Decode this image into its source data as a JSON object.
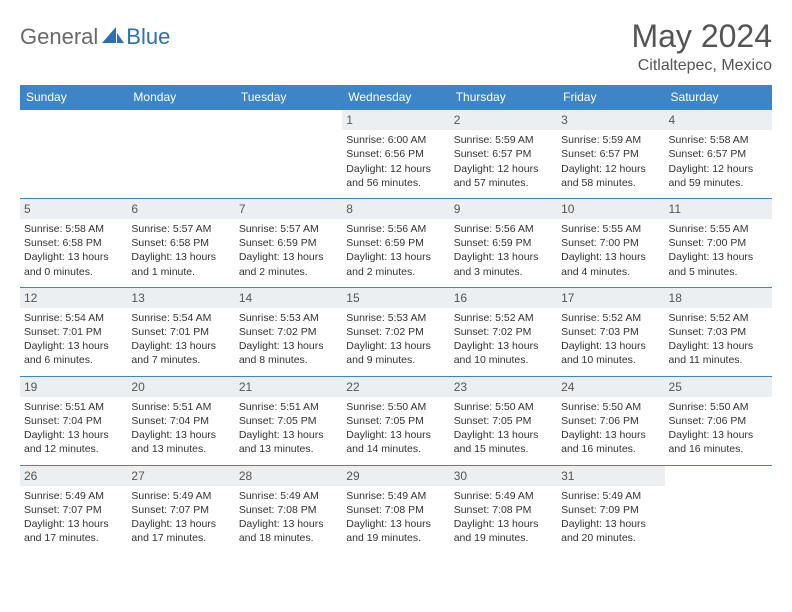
{
  "brand": {
    "part1": "General",
    "part2": "Blue"
  },
  "title": "May 2024",
  "location": "Citlaltepec, Mexico",
  "colors": {
    "header_bg": "#3d85c6",
    "header_text": "#ffffff",
    "daynum_bg": "#eceff1",
    "rule": "#3d85c6",
    "brand_gray": "#6a6a6a",
    "brand_blue": "#2d6fb5"
  },
  "weekdays": [
    "Sunday",
    "Monday",
    "Tuesday",
    "Wednesday",
    "Thursday",
    "Friday",
    "Saturday"
  ],
  "weeks": [
    [
      null,
      null,
      null,
      {
        "n": "1",
        "sr": "Sunrise: 6:00 AM",
        "ss": "Sunset: 6:56 PM",
        "d1": "Daylight: 12 hours",
        "d2": "and 56 minutes."
      },
      {
        "n": "2",
        "sr": "Sunrise: 5:59 AM",
        "ss": "Sunset: 6:57 PM",
        "d1": "Daylight: 12 hours",
        "d2": "and 57 minutes."
      },
      {
        "n": "3",
        "sr": "Sunrise: 5:59 AM",
        "ss": "Sunset: 6:57 PM",
        "d1": "Daylight: 12 hours",
        "d2": "and 58 minutes."
      },
      {
        "n": "4",
        "sr": "Sunrise: 5:58 AM",
        "ss": "Sunset: 6:57 PM",
        "d1": "Daylight: 12 hours",
        "d2": "and 59 minutes."
      }
    ],
    [
      {
        "n": "5",
        "sr": "Sunrise: 5:58 AM",
        "ss": "Sunset: 6:58 PM",
        "d1": "Daylight: 13 hours",
        "d2": "and 0 minutes."
      },
      {
        "n": "6",
        "sr": "Sunrise: 5:57 AM",
        "ss": "Sunset: 6:58 PM",
        "d1": "Daylight: 13 hours",
        "d2": "and 1 minute."
      },
      {
        "n": "7",
        "sr": "Sunrise: 5:57 AM",
        "ss": "Sunset: 6:59 PM",
        "d1": "Daylight: 13 hours",
        "d2": "and 2 minutes."
      },
      {
        "n": "8",
        "sr": "Sunrise: 5:56 AM",
        "ss": "Sunset: 6:59 PM",
        "d1": "Daylight: 13 hours",
        "d2": "and 2 minutes."
      },
      {
        "n": "9",
        "sr": "Sunrise: 5:56 AM",
        "ss": "Sunset: 6:59 PM",
        "d1": "Daylight: 13 hours",
        "d2": "and 3 minutes."
      },
      {
        "n": "10",
        "sr": "Sunrise: 5:55 AM",
        "ss": "Sunset: 7:00 PM",
        "d1": "Daylight: 13 hours",
        "d2": "and 4 minutes."
      },
      {
        "n": "11",
        "sr": "Sunrise: 5:55 AM",
        "ss": "Sunset: 7:00 PM",
        "d1": "Daylight: 13 hours",
        "d2": "and 5 minutes."
      }
    ],
    [
      {
        "n": "12",
        "sr": "Sunrise: 5:54 AM",
        "ss": "Sunset: 7:01 PM",
        "d1": "Daylight: 13 hours",
        "d2": "and 6 minutes."
      },
      {
        "n": "13",
        "sr": "Sunrise: 5:54 AM",
        "ss": "Sunset: 7:01 PM",
        "d1": "Daylight: 13 hours",
        "d2": "and 7 minutes."
      },
      {
        "n": "14",
        "sr": "Sunrise: 5:53 AM",
        "ss": "Sunset: 7:02 PM",
        "d1": "Daylight: 13 hours",
        "d2": "and 8 minutes."
      },
      {
        "n": "15",
        "sr": "Sunrise: 5:53 AM",
        "ss": "Sunset: 7:02 PM",
        "d1": "Daylight: 13 hours",
        "d2": "and 9 minutes."
      },
      {
        "n": "16",
        "sr": "Sunrise: 5:52 AM",
        "ss": "Sunset: 7:02 PM",
        "d1": "Daylight: 13 hours",
        "d2": "and 10 minutes."
      },
      {
        "n": "17",
        "sr": "Sunrise: 5:52 AM",
        "ss": "Sunset: 7:03 PM",
        "d1": "Daylight: 13 hours",
        "d2": "and 10 minutes."
      },
      {
        "n": "18",
        "sr": "Sunrise: 5:52 AM",
        "ss": "Sunset: 7:03 PM",
        "d1": "Daylight: 13 hours",
        "d2": "and 11 minutes."
      }
    ],
    [
      {
        "n": "19",
        "sr": "Sunrise: 5:51 AM",
        "ss": "Sunset: 7:04 PM",
        "d1": "Daylight: 13 hours",
        "d2": "and 12 minutes."
      },
      {
        "n": "20",
        "sr": "Sunrise: 5:51 AM",
        "ss": "Sunset: 7:04 PM",
        "d1": "Daylight: 13 hours",
        "d2": "and 13 minutes."
      },
      {
        "n": "21",
        "sr": "Sunrise: 5:51 AM",
        "ss": "Sunset: 7:05 PM",
        "d1": "Daylight: 13 hours",
        "d2": "and 13 minutes."
      },
      {
        "n": "22",
        "sr": "Sunrise: 5:50 AM",
        "ss": "Sunset: 7:05 PM",
        "d1": "Daylight: 13 hours",
        "d2": "and 14 minutes."
      },
      {
        "n": "23",
        "sr": "Sunrise: 5:50 AM",
        "ss": "Sunset: 7:05 PM",
        "d1": "Daylight: 13 hours",
        "d2": "and 15 minutes."
      },
      {
        "n": "24",
        "sr": "Sunrise: 5:50 AM",
        "ss": "Sunset: 7:06 PM",
        "d1": "Daylight: 13 hours",
        "d2": "and 16 minutes."
      },
      {
        "n": "25",
        "sr": "Sunrise: 5:50 AM",
        "ss": "Sunset: 7:06 PM",
        "d1": "Daylight: 13 hours",
        "d2": "and 16 minutes."
      }
    ],
    [
      {
        "n": "26",
        "sr": "Sunrise: 5:49 AM",
        "ss": "Sunset: 7:07 PM",
        "d1": "Daylight: 13 hours",
        "d2": "and 17 minutes."
      },
      {
        "n": "27",
        "sr": "Sunrise: 5:49 AM",
        "ss": "Sunset: 7:07 PM",
        "d1": "Daylight: 13 hours",
        "d2": "and 17 minutes."
      },
      {
        "n": "28",
        "sr": "Sunrise: 5:49 AM",
        "ss": "Sunset: 7:08 PM",
        "d1": "Daylight: 13 hours",
        "d2": "and 18 minutes."
      },
      {
        "n": "29",
        "sr": "Sunrise: 5:49 AM",
        "ss": "Sunset: 7:08 PM",
        "d1": "Daylight: 13 hours",
        "d2": "and 19 minutes."
      },
      {
        "n": "30",
        "sr": "Sunrise: 5:49 AM",
        "ss": "Sunset: 7:08 PM",
        "d1": "Daylight: 13 hours",
        "d2": "and 19 minutes."
      },
      {
        "n": "31",
        "sr": "Sunrise: 5:49 AM",
        "ss": "Sunset: 7:09 PM",
        "d1": "Daylight: 13 hours",
        "d2": "and 20 minutes."
      },
      null
    ]
  ]
}
